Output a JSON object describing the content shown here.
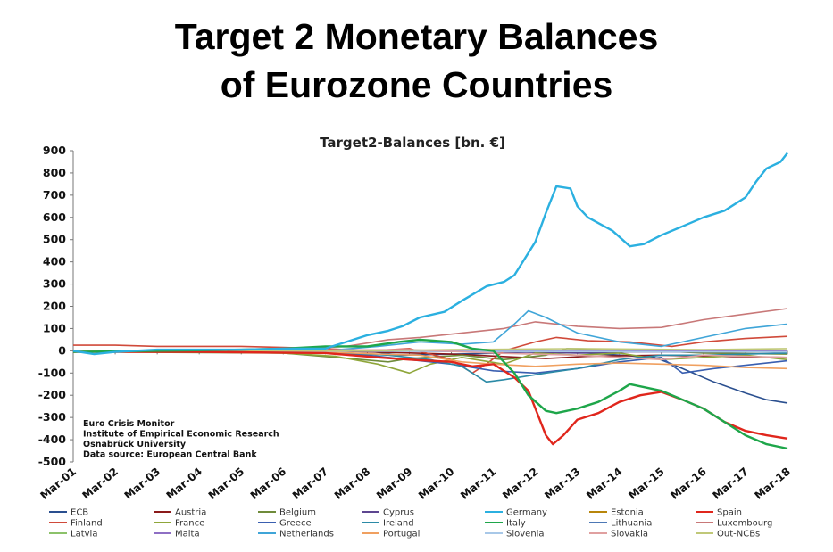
{
  "slide": {
    "title_line1": "Target 2 Monetary Balances",
    "title_line2": "of Eurozone Countries"
  },
  "chart_data": {
    "type": "line",
    "title": "Target2-Balances [bn. €]",
    "xlabel": "",
    "ylabel": "",
    "ylim": [
      -500,
      900
    ],
    "yticks": [
      900,
      800,
      700,
      600,
      500,
      400,
      300,
      200,
      100,
      0,
      -100,
      -200,
      -300,
      -400,
      -500
    ],
    "xticks": [
      "Mar-01",
      "Mar-02",
      "Mar-03",
      "Mar-04",
      "Mar-05",
      "Mar-06",
      "Mar-07",
      "Mar-08",
      "Mar-09",
      "Mar-10",
      "Mar-11",
      "Mar-12",
      "Mar-13",
      "Mar-14",
      "Mar-15",
      "Mar-16",
      "Mar-17",
      "Mar-18"
    ],
    "x_range": [
      "2001-03",
      "2018-03"
    ],
    "grid": false,
    "legend_position": "bottom",
    "notes": [
      "Euro Crisis Monitor",
      "Institute of Empirical Economic Research",
      "Osnabrück University",
      "Data source: European Central Bank"
    ],
    "series": [
      {
        "name": "ECB",
        "color": "#2a4f8f",
        "points": [
          [
            "2001-03",
            0
          ],
          [
            "2008-03",
            0
          ],
          [
            "2008-12",
            -20
          ],
          [
            "2011-06",
            -10
          ],
          [
            "2012-01",
            -5
          ],
          [
            "2013-06",
            -10
          ],
          [
            "2015-01",
            -30
          ],
          [
            "2015-06",
            -60
          ],
          [
            "2016-06",
            -140
          ],
          [
            "2017-03",
            -190
          ],
          [
            "2017-09",
            -220
          ],
          [
            "2018-03",
            -235
          ]
        ]
      },
      {
        "name": "Austria",
        "color": "#8b1a1a",
        "points": [
          [
            "2001-03",
            0
          ],
          [
            "2007-03",
            0
          ],
          [
            "2008-03",
            -5
          ],
          [
            "2010-03",
            -15
          ],
          [
            "2012-06",
            -35
          ],
          [
            "2013-06",
            -25
          ],
          [
            "2015-03",
            -20
          ],
          [
            "2016-06",
            -25
          ],
          [
            "2018-03",
            -30
          ]
        ]
      },
      {
        "name": "Belgium",
        "color": "#6f8b3a",
        "points": [
          [
            "2001-03",
            -5
          ],
          [
            "2006-03",
            -10
          ],
          [
            "2007-06",
            -30
          ],
          [
            "2008-09",
            -50
          ],
          [
            "2009-03",
            -35
          ],
          [
            "2010-06",
            -20
          ],
          [
            "2011-06",
            -40
          ],
          [
            "2012-06",
            -20
          ],
          [
            "2012-12",
            10
          ],
          [
            "2014-06",
            5
          ],
          [
            "2016-03",
            -10
          ],
          [
            "2018-03",
            -15
          ]
        ]
      },
      {
        "name": "Cyprus",
        "color": "#5d4690",
        "points": [
          [
            "2001-03",
            0
          ],
          [
            "2008-03",
            0
          ],
          [
            "2011-06",
            -5
          ],
          [
            "2013-03",
            -10
          ],
          [
            "2014-06",
            -5
          ],
          [
            "2018-03",
            -5
          ]
        ]
      },
      {
        "name": "Germany",
        "color": "#2bb0e0",
        "points": [
          [
            "2001-03",
            0
          ],
          [
            "2001-09",
            -15
          ],
          [
            "2002-03",
            -5
          ],
          [
            "2003-03",
            5
          ],
          [
            "2004-03",
            5
          ],
          [
            "2005-03",
            5
          ],
          [
            "2006-03",
            10
          ],
          [
            "2007-03",
            10
          ],
          [
            "2007-09",
            40
          ],
          [
            "2008-03",
            70
          ],
          [
            "2008-09",
            90
          ],
          [
            "2009-01",
            110
          ],
          [
            "2009-06",
            150
          ],
          [
            "2010-01",
            175
          ],
          [
            "2010-06",
            225
          ],
          [
            "2011-01",
            290
          ],
          [
            "2011-06",
            310
          ],
          [
            "2011-09",
            340
          ],
          [
            "2012-03",
            490
          ],
          [
            "2012-06",
            620
          ],
          [
            "2012-09",
            740
          ],
          [
            "2013-01",
            730
          ],
          [
            "2013-03",
            650
          ],
          [
            "2013-06",
            600
          ],
          [
            "2014-01",
            540
          ],
          [
            "2014-06",
            470
          ],
          [
            "2014-10",
            480
          ],
          [
            "2015-03",
            520
          ],
          [
            "2015-09",
            560
          ],
          [
            "2016-03",
            600
          ],
          [
            "2016-09",
            630
          ],
          [
            "2017-03",
            690
          ],
          [
            "2017-06",
            760
          ],
          [
            "2017-09",
            820
          ],
          [
            "2018-01",
            850
          ],
          [
            "2018-03",
            890
          ]
        ]
      },
      {
        "name": "Estonia",
        "color": "#b8860b",
        "points": [
          [
            "2001-03",
            0
          ],
          [
            "2018-03",
            0
          ]
        ]
      },
      {
        "name": "Spain",
        "color": "#e0261c",
        "points": [
          [
            "2001-03",
            -5
          ],
          [
            "2004-03",
            -5
          ],
          [
            "2007-03",
            -10
          ],
          [
            "2008-06",
            -30
          ],
          [
            "2009-03",
            -40
          ],
          [
            "2010-03",
            -50
          ],
          [
            "2010-09",
            -70
          ],
          [
            "2011-03",
            -60
          ],
          [
            "2011-09",
            -120
          ],
          [
            "2012-01",
            -180
          ],
          [
            "2012-06",
            -380
          ],
          [
            "2012-08",
            -420
          ],
          [
            "2012-11",
            -380
          ],
          [
            "2013-03",
            -310
          ],
          [
            "2013-09",
            -280
          ],
          [
            "2014-03",
            -230
          ],
          [
            "2014-09",
            -200
          ],
          [
            "2015-03",
            -185
          ],
          [
            "2015-09",
            -220
          ],
          [
            "2016-03",
            -260
          ],
          [
            "2016-09",
            -320
          ],
          [
            "2017-03",
            -360
          ],
          [
            "2017-09",
            -380
          ],
          [
            "2018-03",
            -395
          ]
        ]
      },
      {
        "name": "Finland",
        "color": "#d04a3a",
        "points": [
          [
            "2001-03",
            25
          ],
          [
            "2002-03",
            25
          ],
          [
            "2003-03",
            20
          ],
          [
            "2004-03",
            20
          ],
          [
            "2005-03",
            20
          ],
          [
            "2006-03",
            15
          ],
          [
            "2007-03",
            10
          ],
          [
            "2008-03",
            0
          ],
          [
            "2009-03",
            10
          ],
          [
            "2010-03",
            -40
          ],
          [
            "2010-09",
            -100
          ],
          [
            "2011-01",
            -60
          ],
          [
            "2011-06",
            0
          ],
          [
            "2012-03",
            40
          ],
          [
            "2012-09",
            60
          ],
          [
            "2013-06",
            45
          ],
          [
            "2014-06",
            40
          ],
          [
            "2015-06",
            20
          ],
          [
            "2016-03",
            40
          ],
          [
            "2017-03",
            55
          ],
          [
            "2018-03",
            65
          ]
        ]
      },
      {
        "name": "France",
        "color": "#8fa63a",
        "points": [
          [
            "2001-03",
            0
          ],
          [
            "2004-03",
            -5
          ],
          [
            "2006-03",
            -10
          ],
          [
            "2007-06",
            -25
          ],
          [
            "2008-06",
            -60
          ],
          [
            "2009-03",
            -100
          ],
          [
            "2009-09",
            -60
          ],
          [
            "2010-06",
            -30
          ],
          [
            "2011-06",
            -60
          ],
          [
            "2012-03",
            -10
          ],
          [
            "2013-03",
            -20
          ],
          [
            "2014-03",
            -10
          ],
          [
            "2015-03",
            -40
          ],
          [
            "2016-03",
            -30
          ],
          [
            "2017-03",
            -20
          ],
          [
            "2018-03",
            -40
          ]
        ]
      },
      {
        "name": "Greece",
        "color": "#3a5fb0",
        "points": [
          [
            "2001-03",
            0
          ],
          [
            "2007-03",
            -5
          ],
          [
            "2008-03",
            -20
          ],
          [
            "2009-03",
            -40
          ],
          [
            "2010-03",
            -60
          ],
          [
            "2011-03",
            -90
          ],
          [
            "2012-03",
            -100
          ],
          [
            "2013-03",
            -80
          ],
          [
            "2014-03",
            -50
          ],
          [
            "2015-03",
            -30
          ],
          [
            "2015-09",
            -100
          ],
          [
            "2016-06",
            -80
          ],
          [
            "2017-06",
            -60
          ],
          [
            "2018-03",
            -45
          ]
        ]
      },
      {
        "name": "Ireland",
        "color": "#2b8aa6",
        "points": [
          [
            "2001-03",
            0
          ],
          [
            "2007-03",
            -5
          ],
          [
            "2008-09",
            -20
          ],
          [
            "2009-09",
            -40
          ],
          [
            "2010-06",
            -70
          ],
          [
            "2011-01",
            -140
          ],
          [
            "2011-06",
            -130
          ],
          [
            "2012-06",
            -100
          ],
          [
            "2013-03",
            -80
          ],
          [
            "2014-03",
            -40
          ],
          [
            "2015-03",
            -20
          ],
          [
            "2016-03",
            -20
          ],
          [
            "2018-03",
            -10
          ]
        ]
      },
      {
        "name": "Italy",
        "color": "#1ea64a",
        "points": [
          [
            "2001-03",
            -5
          ],
          [
            "2003-03",
            0
          ],
          [
            "2005-03",
            5
          ],
          [
            "2006-03",
            10
          ],
          [
            "2007-03",
            20
          ],
          [
            "2008-03",
            20
          ],
          [
            "2008-12",
            40
          ],
          [
            "2009-06",
            50
          ],
          [
            "2010-03",
            40
          ],
          [
            "2010-09",
            10
          ],
          [
            "2011-03",
            0
          ],
          [
            "2011-09",
            -100
          ],
          [
            "2012-01",
            -200
          ],
          [
            "2012-06",
            -270
          ],
          [
            "2012-09",
            -280
          ],
          [
            "2013-03",
            -260
          ],
          [
            "2013-09",
            -230
          ],
          [
            "2014-03",
            -180
          ],
          [
            "2014-06",
            -150
          ],
          [
            "2015-03",
            -180
          ],
          [
            "2015-09",
            -220
          ],
          [
            "2016-03",
            -260
          ],
          [
            "2016-09",
            -320
          ],
          [
            "2017-03",
            -380
          ],
          [
            "2017-09",
            -420
          ],
          [
            "2018-03",
            -440
          ]
        ]
      },
      {
        "name": "Lithuania",
        "color": "#4d78b5",
        "points": [
          [
            "2001-03",
            0
          ],
          [
            "2018-03",
            0
          ]
        ]
      },
      {
        "name": "Luxembourg",
        "color": "#c87878",
        "points": [
          [
            "2001-03",
            0
          ],
          [
            "2006-03",
            5
          ],
          [
            "2007-09",
            20
          ],
          [
            "2008-09",
            50
          ],
          [
            "2009-06",
            60
          ],
          [
            "2010-06",
            80
          ],
          [
            "2011-06",
            100
          ],
          [
            "2012-03",
            130
          ],
          [
            "2013-03",
            110
          ],
          [
            "2014-03",
            100
          ],
          [
            "2015-03",
            105
          ],
          [
            "2016-03",
            140
          ],
          [
            "2017-03",
            165
          ],
          [
            "2018-03",
            190
          ]
        ]
      },
      {
        "name": "Latvia",
        "color": "#8cc26a",
        "points": [
          [
            "2001-03",
            0
          ],
          [
            "2018-03",
            0
          ]
        ]
      },
      {
        "name": "Malta",
        "color": "#8e6fc4",
        "points": [
          [
            "2001-03",
            0
          ],
          [
            "2018-03",
            0
          ]
        ]
      },
      {
        "name": "Netherlands",
        "color": "#3fa5d8",
        "points": [
          [
            "2001-03",
            0
          ],
          [
            "2007-03",
            0
          ],
          [
            "2008-06",
            20
          ],
          [
            "2009-06",
            40
          ],
          [
            "2010-06",
            30
          ],
          [
            "2011-03",
            40
          ],
          [
            "2011-09",
            120
          ],
          [
            "2012-01",
            180
          ],
          [
            "2012-06",
            150
          ],
          [
            "2013-03",
            80
          ],
          [
            "2014-03",
            40
          ],
          [
            "2015-03",
            20
          ],
          [
            "2016-03",
            60
          ],
          [
            "2017-03",
            100
          ],
          [
            "2018-03",
            120
          ]
        ]
      },
      {
        "name": "Portugal",
        "color": "#f0a060",
        "points": [
          [
            "2001-03",
            0
          ],
          [
            "2007-03",
            -5
          ],
          [
            "2008-06",
            -15
          ],
          [
            "2009-06",
            -20
          ],
          [
            "2010-06",
            -50
          ],
          [
            "2011-03",
            -60
          ],
          [
            "2012-03",
            -70
          ],
          [
            "2013-03",
            -60
          ],
          [
            "2014-03",
            -55
          ],
          [
            "2015-03",
            -60
          ],
          [
            "2016-03",
            -65
          ],
          [
            "2017-03",
            -75
          ],
          [
            "2018-03",
            -80
          ]
        ]
      },
      {
        "name": "Slovenia",
        "color": "#a8c8e8",
        "points": [
          [
            "2001-03",
            0
          ],
          [
            "2018-03",
            -5
          ]
        ]
      },
      {
        "name": "Slovakia",
        "color": "#e0a0a0",
        "points": [
          [
            "2001-03",
            0
          ],
          [
            "2009-03",
            5
          ],
          [
            "2011-03",
            -10
          ],
          [
            "2013-03",
            -20
          ],
          [
            "2015-03",
            -40
          ],
          [
            "2016-03",
            -20
          ],
          [
            "2018-03",
            -30
          ]
        ]
      },
      {
        "name": "Out-NCBs",
        "color": "#c0c878",
        "points": [
          [
            "2001-03",
            0
          ],
          [
            "2008-03",
            0
          ],
          [
            "2010-03",
            5
          ],
          [
            "2013-03",
            10
          ],
          [
            "2016-03",
            5
          ],
          [
            "2018-03",
            10
          ]
        ]
      }
    ]
  }
}
